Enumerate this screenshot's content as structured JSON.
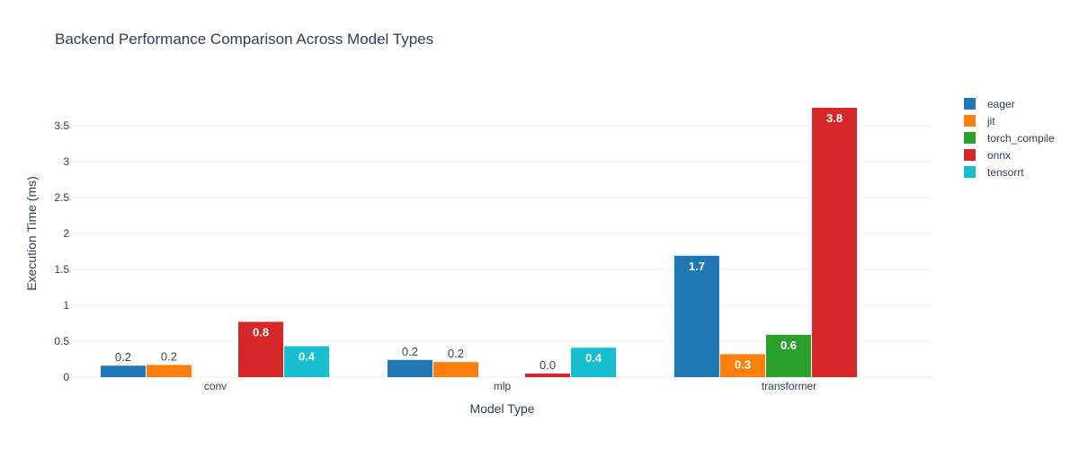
{
  "chart_data": {
    "type": "bar",
    "title": "Backend Performance Comparison Across Model Types",
    "xlabel": "Model Type",
    "ylabel": "Execution Time (ms)",
    "categories": [
      "conv",
      "mlp",
      "transformer"
    ],
    "ylim": [
      0,
      4.0
    ],
    "yticks": [
      0,
      0.5,
      1,
      1.5,
      2,
      2.5,
      3,
      3.5
    ],
    "ytick_labels": [
      "0",
      "0.5",
      "1",
      "1.5",
      "2",
      "2.5",
      "3",
      "3.5"
    ],
    "grid": true,
    "legend_position": "right",
    "series": [
      {
        "name": "eager",
        "color": "#1f77b4",
        "values": [
          0.16,
          0.24,
          1.69
        ],
        "labels": [
          "0.2",
          "0.2",
          "1.7"
        ]
      },
      {
        "name": "jit",
        "color": "#ff7f0e",
        "values": [
          0.17,
          0.21,
          0.32
        ],
        "labels": [
          "0.2",
          "0.2",
          "0.3"
        ]
      },
      {
        "name": "torch_compile",
        "color": "#2ca02c",
        "values": [
          null,
          null,
          0.59
        ],
        "labels": [
          "",
          "",
          "0.6"
        ]
      },
      {
        "name": "onnx",
        "color": "#d62728",
        "values": [
          0.77,
          0.05,
          3.75
        ],
        "labels": [
          "0.8",
          "0.0",
          "3.8"
        ]
      },
      {
        "name": "tensorrt",
        "color": "#17becf",
        "values": [
          0.43,
          0.41,
          null
        ],
        "labels": [
          "0.4",
          "0.4",
          ""
        ]
      }
    ]
  }
}
